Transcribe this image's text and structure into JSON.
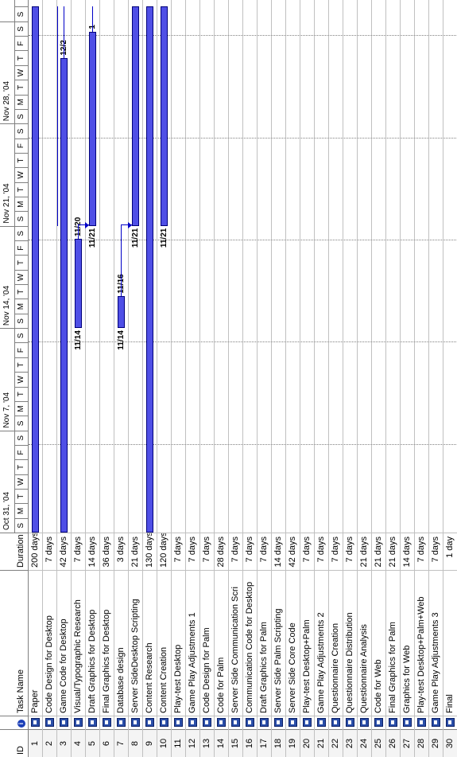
{
  "columns": {
    "id": "ID",
    "name": "Task Name",
    "duration": "Duration"
  },
  "weeks": [
    "Oct 31, '04",
    "Nov 7, '04",
    "Nov 14, '04",
    "Nov 21, '04",
    "Nov 28, '04"
  ],
  "day_letters": [
    "S",
    "M",
    "T",
    "W",
    "T",
    "F",
    "S"
  ],
  "tasks": [
    {
      "id": "1",
      "name": "Paper",
      "duration": "200 days"
    },
    {
      "id": "2",
      "name": "Code Design for Desktop",
      "duration": "7 days"
    },
    {
      "id": "3",
      "name": "Game Code for Desktop",
      "duration": "42 days"
    },
    {
      "id": "4",
      "name": "Visual/Typographic Research",
      "duration": "7 days"
    },
    {
      "id": "5",
      "name": "Draft Graphics for Desktop",
      "duration": "14 days"
    },
    {
      "id": "6",
      "name": "Final Graphics for Desktop",
      "duration": "36 days"
    },
    {
      "id": "7",
      "name": "Database design",
      "duration": "3 days"
    },
    {
      "id": "8",
      "name": "Server SideDesktop Scripting",
      "duration": "21 days"
    },
    {
      "id": "9",
      "name": "Content Research",
      "duration": "130 days"
    },
    {
      "id": "10",
      "name": "Content Creation",
      "duration": "120 days"
    },
    {
      "id": "11",
      "name": "Play-test Desktop",
      "duration": "7 days"
    },
    {
      "id": "12",
      "name": "Game Play Adjustments 1",
      "duration": "7 days"
    },
    {
      "id": "13",
      "name": "Code Design for Palm",
      "duration": "7 days"
    },
    {
      "id": "14",
      "name": "Code for Palm",
      "duration": "28 days"
    },
    {
      "id": "15",
      "name": "Server Side Communication Scri",
      "duration": "7 days"
    },
    {
      "id": "16",
      "name": "Communication Code for Desktop",
      "duration": "7 days"
    },
    {
      "id": "17",
      "name": "Draft Graphics for Palm",
      "duration": "7 days"
    },
    {
      "id": "18",
      "name": "Server Side Palm Scripting",
      "duration": "14 days"
    },
    {
      "id": "19",
      "name": "Server Side Core Code",
      "duration": "42 days"
    },
    {
      "id": "20",
      "name": "Play-test Desktop+Palm",
      "duration": "7 days"
    },
    {
      "id": "21",
      "name": "Game Play Adjustments 2",
      "duration": "7 days"
    },
    {
      "id": "22",
      "name": "Questionnaire Creation",
      "duration": "7 days"
    },
    {
      "id": "23",
      "name": "Questionnaire Distribution",
      "duration": "7 days"
    },
    {
      "id": "24",
      "name": "Questionnaire Analysis",
      "duration": "21 days"
    },
    {
      "id": "25",
      "name": "Code for Web",
      "duration": "21 days"
    },
    {
      "id": "26",
      "name": "Final Graphics for Palm",
      "duration": "21 days"
    },
    {
      "id": "27",
      "name": "Graphics for Web",
      "duration": "14 days"
    },
    {
      "id": "28",
      "name": "Play-test Desktop+Palm+Web",
      "duration": "7 days"
    },
    {
      "id": "29",
      "name": "Game Play Adjustments 3",
      "duration": "7 days"
    },
    {
      "id": "30",
      "name": "Final",
      "duration": "1 day"
    }
  ],
  "bar_labels": {
    "row3_end": "12/2",
    "row4_start": "11/14",
    "row4_end": "11/20",
    "row5_start": "11/21",
    "row5_end": "1",
    "row7_start": "11/14",
    "row7_end": "11/16",
    "row8_start": "11/21",
    "row10_start": "11/21"
  },
  "colors": {
    "bar_fill": "#4f4fe6",
    "bar_border": "#00007a",
    "link": "#0000c8"
  }
}
